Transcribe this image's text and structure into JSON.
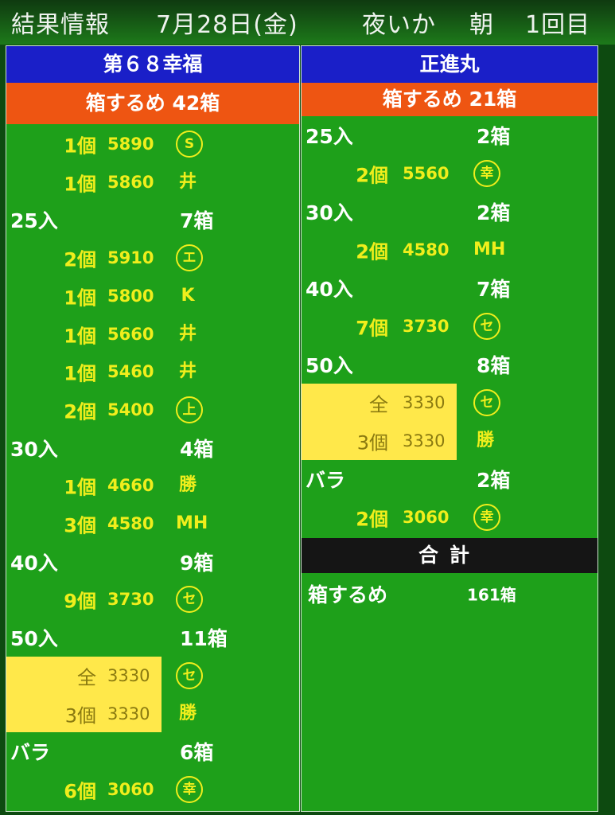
{
  "header": {
    "title": "結果情報",
    "date": "7月28日(金)",
    "product": "夜いか",
    "session": "朝",
    "round": "1回目"
  },
  "colors": {
    "boat_bar": "#1a1fc8",
    "summary_bar": "#ee5512",
    "board": "#1ea01a",
    "lot_text": "#f0ee1c",
    "highlight": "#ffe84a"
  },
  "boats": [
    {
      "name": "第６８幸福",
      "summary": "箱するめ 42箱",
      "rows": [
        {
          "type": "lot",
          "qty": "1個",
          "price": "5890",
          "mark": "S",
          "mark_style": "circle"
        },
        {
          "type": "lot",
          "qty": "1個",
          "price": "5860",
          "mark": "井",
          "mark_style": "plain"
        },
        {
          "type": "size",
          "label": "25入",
          "boxes": "7箱"
        },
        {
          "type": "lot",
          "qty": "2個",
          "price": "5910",
          "mark": "エ",
          "mark_style": "circle"
        },
        {
          "type": "lot",
          "qty": "1個",
          "price": "5800",
          "mark": "K",
          "mark_style": "plain"
        },
        {
          "type": "lot",
          "qty": "1個",
          "price": "5660",
          "mark": "井",
          "mark_style": "plain"
        },
        {
          "type": "lot",
          "qty": "1個",
          "price": "5460",
          "mark": "井",
          "mark_style": "plain"
        },
        {
          "type": "lot",
          "qty": "2個",
          "price": "5400",
          "mark": "上",
          "mark_style": "circle"
        },
        {
          "type": "size",
          "label": "30入",
          "boxes": "4箱"
        },
        {
          "type": "lot",
          "qty": "1個",
          "price": "4660",
          "mark": "勝",
          "mark_style": "plain"
        },
        {
          "type": "lot",
          "qty": "3個",
          "price": "4580",
          "mark": "MH",
          "mark_style": "plain"
        },
        {
          "type": "size",
          "label": "40入",
          "boxes": "9箱"
        },
        {
          "type": "lot",
          "qty": "9個",
          "price": "3730",
          "mark": "セ",
          "mark_style": "circle"
        },
        {
          "type": "size",
          "label": "50入",
          "boxes": "11箱"
        },
        {
          "type": "lot",
          "qty": "全",
          "price": "3330",
          "mark": "セ",
          "mark_style": "circle",
          "highlight": true
        },
        {
          "type": "lot",
          "qty": "3個",
          "price": "3330",
          "mark": "勝",
          "mark_style": "plain",
          "highlight": true
        },
        {
          "type": "size",
          "label": "バラ",
          "boxes": "6箱"
        },
        {
          "type": "lot",
          "qty": "6個",
          "price": "3060",
          "mark": "幸",
          "mark_style": "circle"
        }
      ]
    },
    {
      "name": "正進丸",
      "summary": "箱するめ 21箱",
      "rows": [
        {
          "type": "size",
          "label": "25入",
          "boxes": "2箱"
        },
        {
          "type": "lot",
          "qty": "2個",
          "price": "5560",
          "mark": "幸",
          "mark_style": "circle"
        },
        {
          "type": "size",
          "label": "30入",
          "boxes": "2箱"
        },
        {
          "type": "lot",
          "qty": "2個",
          "price": "4580",
          "mark": "MH",
          "mark_style": "plain"
        },
        {
          "type": "size",
          "label": "40入",
          "boxes": "7箱"
        },
        {
          "type": "lot",
          "qty": "7個",
          "price": "3730",
          "mark": "セ",
          "mark_style": "circle"
        },
        {
          "type": "size",
          "label": "50入",
          "boxes": "8箱"
        },
        {
          "type": "lot",
          "qty": "全",
          "price": "3330",
          "mark": "セ",
          "mark_style": "circle",
          "highlight": true
        },
        {
          "type": "lot",
          "qty": "3個",
          "price": "3330",
          "mark": "勝",
          "mark_style": "plain",
          "highlight": true
        },
        {
          "type": "size",
          "label": "バラ",
          "boxes": "2箱"
        },
        {
          "type": "lot",
          "qty": "2個",
          "price": "3060",
          "mark": "幸",
          "mark_style": "circle"
        }
      ]
    }
  ],
  "total": {
    "label": "合計",
    "item": "箱するめ",
    "value": "161箱"
  }
}
